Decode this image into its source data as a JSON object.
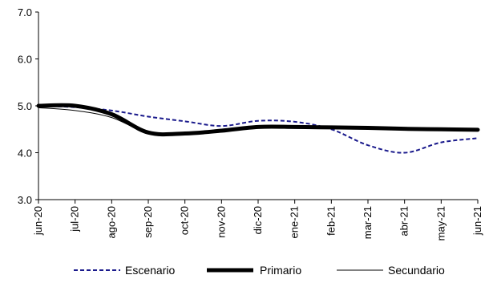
{
  "chart_data": {
    "type": "line",
    "title": "",
    "xlabel": "",
    "ylabel": "",
    "categories": [
      "jun-20",
      "jul-20",
      "ago-20",
      "sep-20",
      "oct-20",
      "nov-20",
      "dic-20",
      "ene-21",
      "feb-21",
      "mar-21",
      "abr-21",
      "may-21",
      "jun-21"
    ],
    "ylim": [
      3.0,
      7.0
    ],
    "yticks": [
      "3.0",
      "4.0",
      "5.0",
      "6.0",
      "7.0"
    ],
    "grid": false,
    "legend_position": "bottom",
    "series": [
      {
        "name": "Escenario",
        "style": "dashed",
        "color": "#1a1a8c",
        "values": [
          5.0,
          4.97,
          4.9,
          4.77,
          4.67,
          4.57,
          4.68,
          4.66,
          4.5,
          4.16,
          4.0,
          4.22,
          4.31
        ]
      },
      {
        "name": "Primario",
        "style": "thick",
        "color": "#000000",
        "values": [
          5.0,
          5.0,
          4.82,
          4.43,
          4.41,
          4.47,
          4.55,
          4.55,
          4.54,
          4.53,
          4.51,
          4.5,
          4.49
        ]
      },
      {
        "name": "Secundario",
        "style": "thin",
        "color": "#000000",
        "values": [
          4.96,
          4.9,
          4.75,
          4.42,
          4.41,
          4.47,
          4.55,
          4.55,
          4.54,
          4.53,
          4.51,
          4.5,
          4.49
        ]
      }
    ]
  }
}
